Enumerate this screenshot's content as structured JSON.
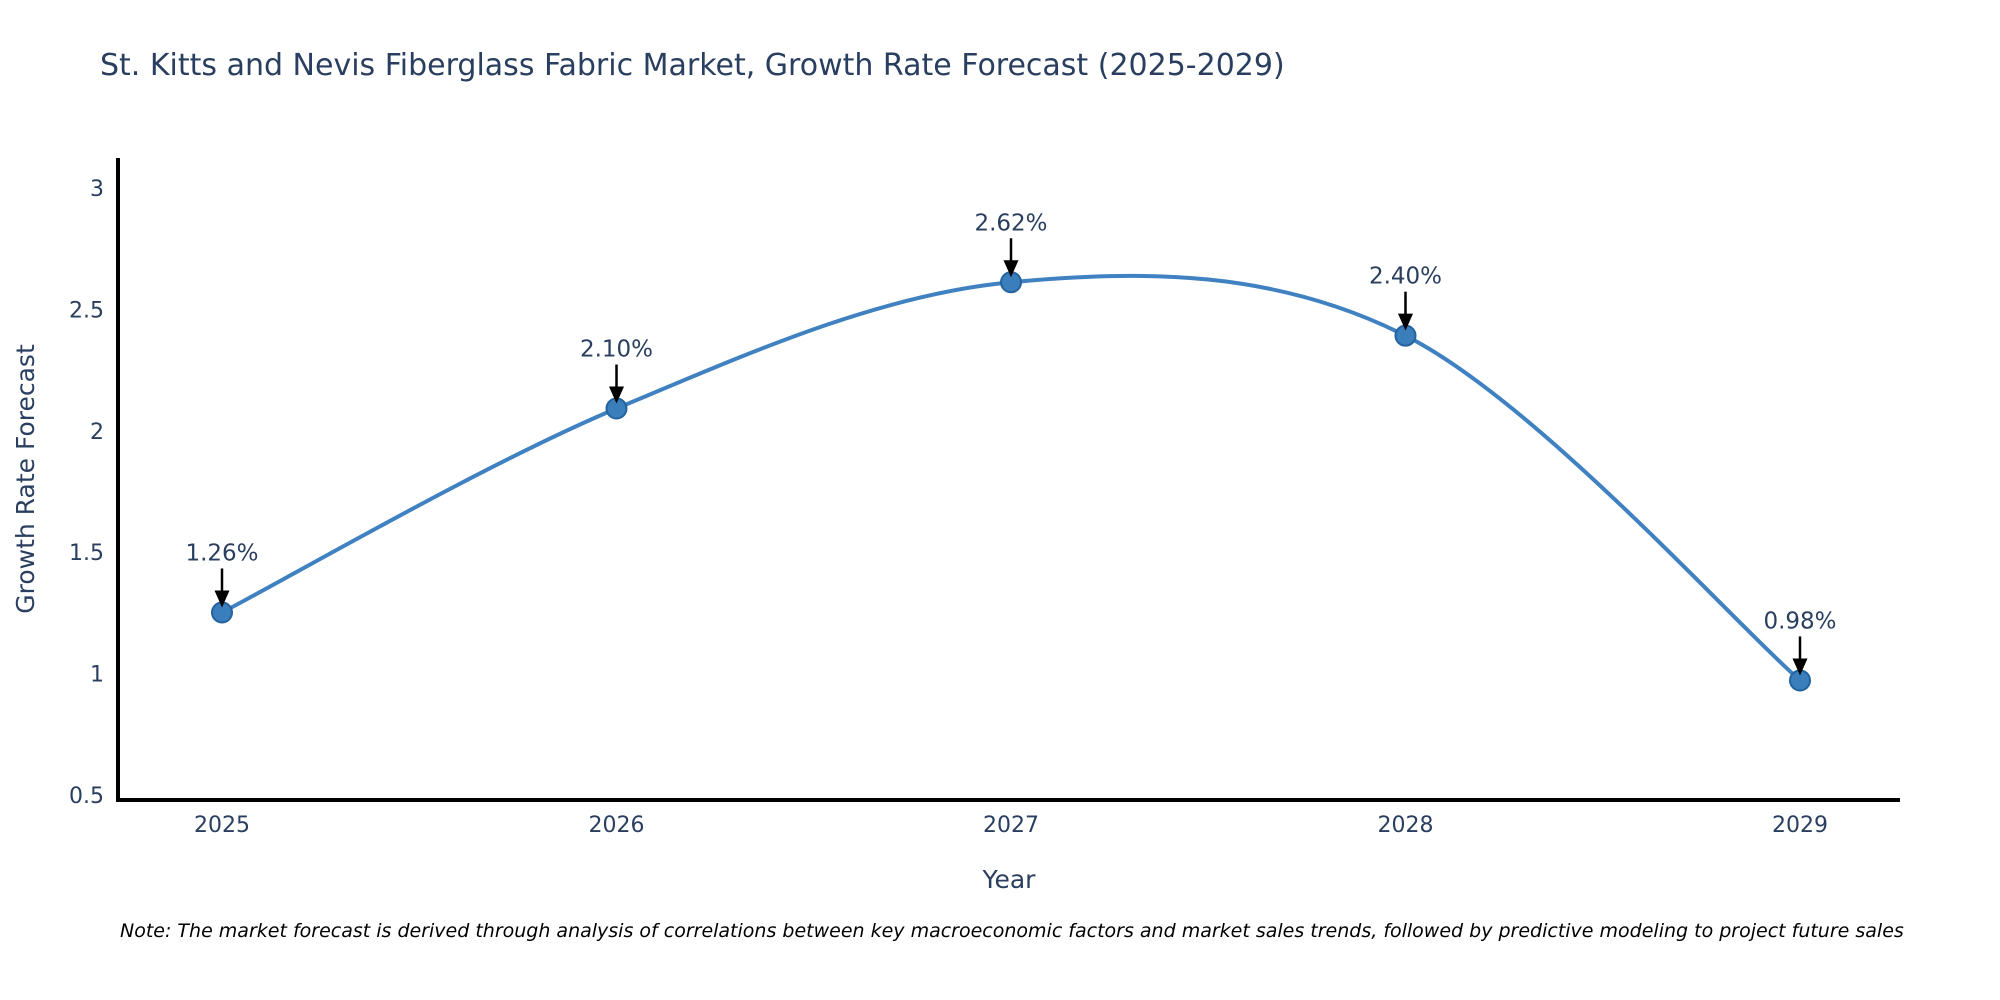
{
  "header": {
    "title": "St. Kitts and Nevis Fiberglass Fabric Market, Growth Rate Forecast (2025-2029)"
  },
  "footer": {
    "note": "Note: The market forecast is derived through analysis of correlations between key macroeconomic factors and market sales trends, followed by predictive modeling to project future sales"
  },
  "chart_data": {
    "type": "line",
    "title": "St. Kitts and Nevis Fiberglass Fabric Market, Growth Rate Forecast (2025-2029)",
    "xlabel": "Year",
    "ylabel": "Growth Rate Forecast",
    "categories": [
      "2025",
      "2026",
      "2027",
      "2028",
      "2029"
    ],
    "values": [
      1.26,
      2.1,
      2.62,
      2.4,
      0.98
    ],
    "point_labels": [
      "1.26%",
      "2.10%",
      "2.62%",
      "2.40%",
      "0.98%"
    ],
    "yticks": [
      "3",
      "2.5",
      "2",
      "1.5",
      "1",
      "0.5"
    ],
    "ytick_values": [
      3,
      2.5,
      2,
      1.5,
      1,
      0.5
    ],
    "ylim": [
      0.5,
      3.12
    ],
    "line_shape": "spline",
    "grid": false,
    "legend": "none",
    "colors": {
      "line": "#3f81c1",
      "marker_fill": "#3a7ebc",
      "marker_edge": "#24639e",
      "text": "#2a3f5f",
      "axis": "#000000",
      "arrow": "#000000"
    }
  }
}
